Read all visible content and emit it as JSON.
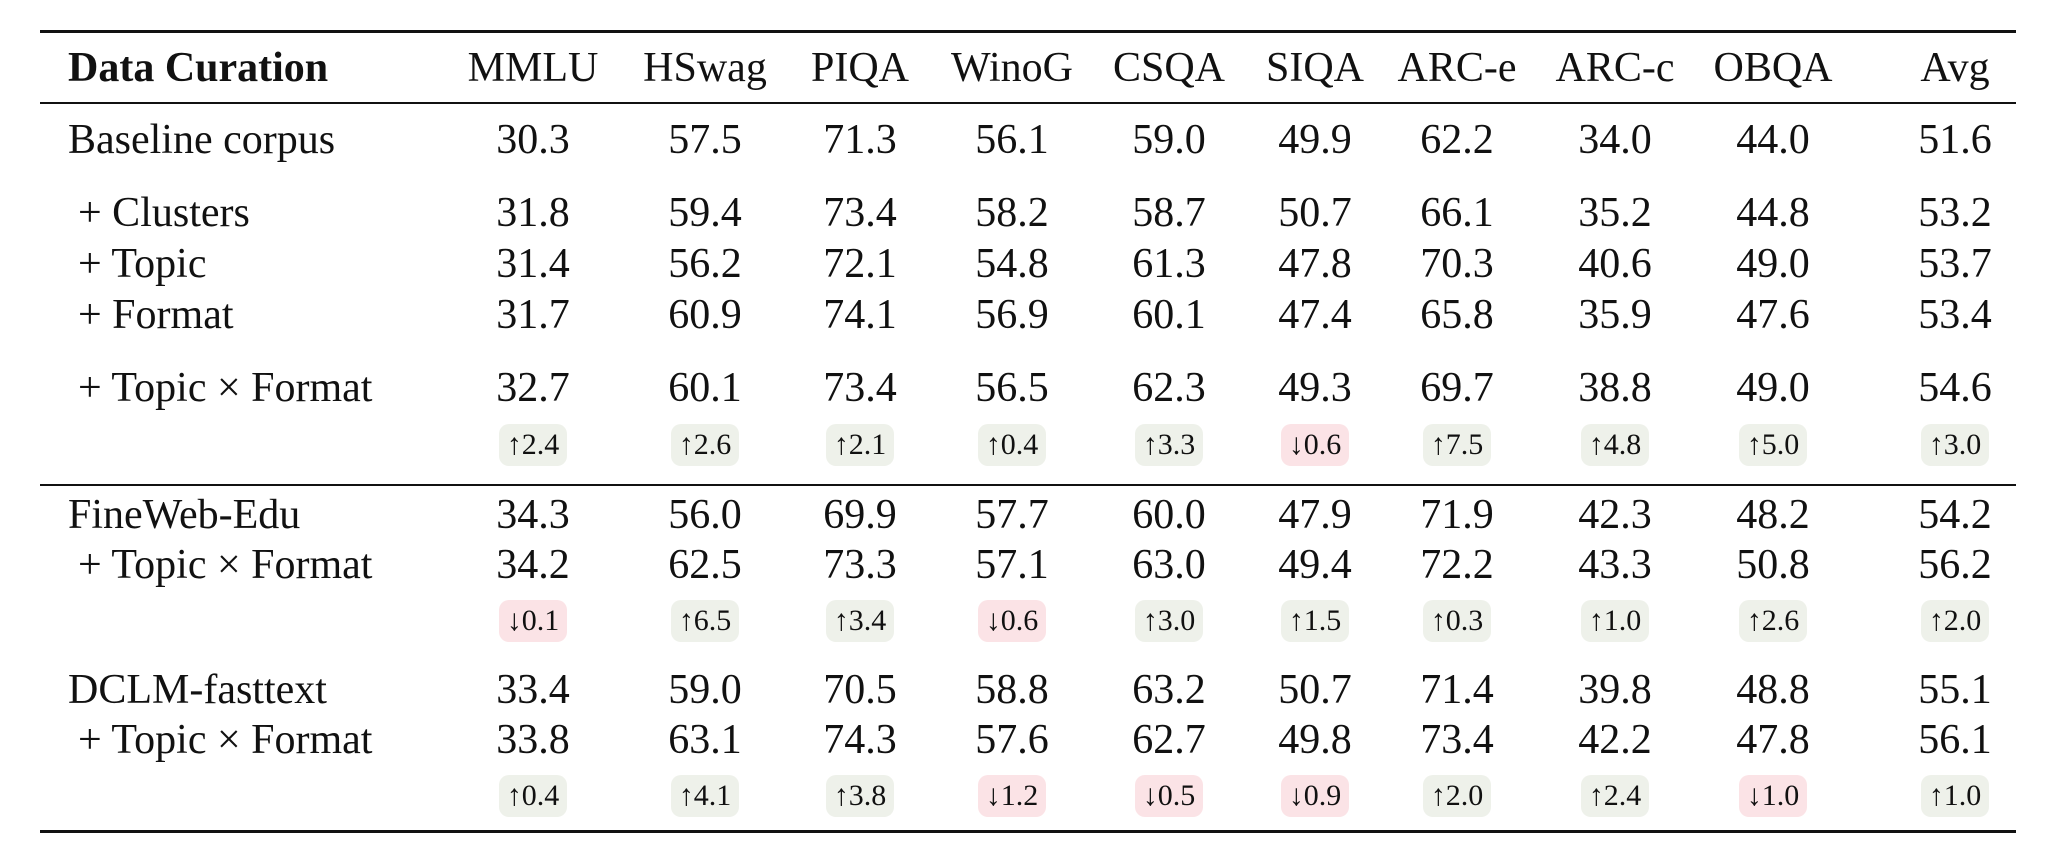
{
  "table": {
    "header": {
      "label": "Data Curation",
      "columns": [
        "MMLU",
        "HSwag",
        "PIQA",
        "WinoG",
        "CSQA",
        "SIQA",
        "ARC-e",
        "ARC-c",
        "OBQA",
        "Avg"
      ]
    },
    "groups": [
      {
        "rows": [
          {
            "label": "Baseline corpus",
            "values": [
              "30.3",
              "57.5",
              "71.3",
              "56.1",
              "59.0",
              "49.9",
              "62.2",
              "34.0",
              "44.0",
              "51.6"
            ]
          },
          {
            "label": "+ Clusters",
            "values": [
              "31.8",
              "59.4",
              "73.4",
              "58.2",
              "58.7",
              "50.7",
              "66.1",
              "35.2",
              "44.8",
              "53.2"
            ]
          },
          {
            "label": "+ Topic",
            "values": [
              "31.4",
              "56.2",
              "72.1",
              "54.8",
              "61.3",
              "47.8",
              "70.3",
              "40.6",
              "49.0",
              "53.7"
            ]
          },
          {
            "label": "+ Format",
            "values": [
              "31.7",
              "60.9",
              "74.1",
              "56.9",
              "60.1",
              "47.4",
              "65.8",
              "35.9",
              "47.6",
              "53.4"
            ]
          },
          {
            "label": "+ Topic × Format",
            "values": [
              "32.7",
              "60.1",
              "73.4",
              "56.5",
              "62.3",
              "49.3",
              "69.7",
              "38.8",
              "49.0",
              "54.6"
            ]
          }
        ],
        "deltas": [
          {
            "text": "↑2.4",
            "dir": "up"
          },
          {
            "text": "↑2.6",
            "dir": "up"
          },
          {
            "text": "↑2.1",
            "dir": "up"
          },
          {
            "text": "↑0.4",
            "dir": "up"
          },
          {
            "text": "↑3.3",
            "dir": "up"
          },
          {
            "text": "↓0.6",
            "dir": "down"
          },
          {
            "text": "↑7.5",
            "dir": "up"
          },
          {
            "text": "↑4.8",
            "dir": "up"
          },
          {
            "text": "↑5.0",
            "dir": "up"
          },
          {
            "text": "↑3.0",
            "dir": "up"
          }
        ]
      },
      {
        "rows": [
          {
            "label": "FineWeb-Edu",
            "values": [
              "34.3",
              "56.0",
              "69.9",
              "57.7",
              "60.0",
              "47.9",
              "71.9",
              "42.3",
              "48.2",
              "54.2"
            ]
          },
          {
            "label": "+ Topic × Format",
            "values": [
              "34.2",
              "62.5",
              "73.3",
              "57.1",
              "63.0",
              "49.4",
              "72.2",
              "43.3",
              "50.8",
              "56.2"
            ]
          }
        ],
        "deltas": [
          {
            "text": "↓0.1",
            "dir": "down"
          },
          {
            "text": "↑6.5",
            "dir": "up"
          },
          {
            "text": "↑3.4",
            "dir": "up"
          },
          {
            "text": "↓0.6",
            "dir": "down"
          },
          {
            "text": "↑3.0",
            "dir": "up"
          },
          {
            "text": "↑1.5",
            "dir": "up"
          },
          {
            "text": "↑0.3",
            "dir": "up"
          },
          {
            "text": "↑1.0",
            "dir": "up"
          },
          {
            "text": "↑2.6",
            "dir": "up"
          },
          {
            "text": "↑2.0",
            "dir": "up"
          }
        ]
      },
      {
        "rows": [
          {
            "label": "DCLM-fasttext",
            "values": [
              "33.4",
              "59.0",
              "70.5",
              "58.8",
              "63.2",
              "50.7",
              "71.4",
              "39.8",
              "48.8",
              "55.1"
            ]
          },
          {
            "label": "+ Topic × Format",
            "values": [
              "33.8",
              "63.1",
              "74.3",
              "57.6",
              "62.7",
              "49.8",
              "73.4",
              "42.2",
              "47.8",
              "56.1"
            ]
          }
        ],
        "deltas": [
          {
            "text": "↑0.4",
            "dir": "up"
          },
          {
            "text": "↑4.1",
            "dir": "up"
          },
          {
            "text": "↑3.8",
            "dir": "up"
          },
          {
            "text": "↓1.2",
            "dir": "down"
          },
          {
            "text": "↓0.5",
            "dir": "down"
          },
          {
            "text": "↓0.9",
            "dir": "down"
          },
          {
            "text": "↑2.0",
            "dir": "up"
          },
          {
            "text": "↑2.4",
            "dir": "up"
          },
          {
            "text": "↓1.0",
            "dir": "down"
          },
          {
            "text": "↑1.0",
            "dir": "up"
          }
        ]
      }
    ]
  }
}
